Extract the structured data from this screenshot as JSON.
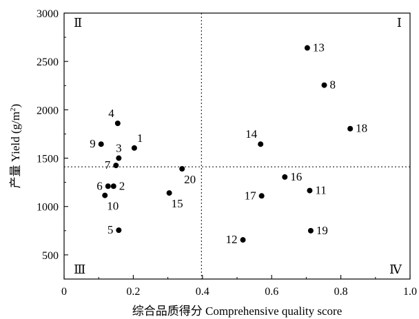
{
  "chart_data": {
    "type": "scatter",
    "xlabel": "综合品质得分 Comprehensive quality score",
    "ylabel_main": "产量 Yield (g/m",
    "ylabel_sup": "2",
    "ylabel_end": ")",
    "xlim": [
      0,
      1.0
    ],
    "ylim": [
      250,
      3000
    ],
    "x_ticks": [
      0,
      0.2,
      0.4,
      0.6,
      0.8,
      1.0
    ],
    "x_tick_labels": [
      "0",
      "0.2",
      "0.4",
      "0.6",
      "0.8",
      "1.0"
    ],
    "y_ticks": [
      500,
      1000,
      1500,
      2000,
      2500,
      3000
    ],
    "y_tick_labels": [
      "500",
      "1000",
      "1500",
      "2000",
      "2500",
      "3000"
    ],
    "ref_lines": {
      "x": 0.397,
      "y": 1410
    },
    "quadrants": {
      "top_left": "Ⅱ",
      "top_right": "Ⅰ",
      "bottom_left": "Ⅲ",
      "bottom_right": "Ⅳ"
    },
    "grid": false,
    "points": [
      {
        "label": "1",
        "x": 0.203,
        "y": 1605,
        "pos": "above-right"
      },
      {
        "label": "2",
        "x": 0.143,
        "y": 1210,
        "pos": "right"
      },
      {
        "label": "3",
        "x": 0.158,
        "y": 1500,
        "pos": "above"
      },
      {
        "label": "4",
        "x": 0.155,
        "y": 1860,
        "pos": "above-left"
      },
      {
        "label": "5",
        "x": 0.158,
        "y": 755,
        "pos": "left"
      },
      {
        "label": "6",
        "x": 0.127,
        "y": 1210,
        "pos": "left"
      },
      {
        "label": "7",
        "x": 0.15,
        "y": 1425,
        "pos": "left"
      },
      {
        "label": "8",
        "x": 0.752,
        "y": 2255,
        "pos": "right"
      },
      {
        "label": "9",
        "x": 0.107,
        "y": 1645,
        "pos": "left"
      },
      {
        "label": "10",
        "x": 0.118,
        "y": 1115,
        "pos": "below-right"
      },
      {
        "label": "11",
        "x": 0.71,
        "y": 1165,
        "pos": "right"
      },
      {
        "label": "12",
        "x": 0.517,
        "y": 655,
        "pos": "left"
      },
      {
        "label": "13",
        "x": 0.703,
        "y": 2640,
        "pos": "right"
      },
      {
        "label": "14",
        "x": 0.568,
        "y": 1645,
        "pos": "above-left"
      },
      {
        "label": "15",
        "x": 0.304,
        "y": 1140,
        "pos": "below-right"
      },
      {
        "label": "16",
        "x": 0.638,
        "y": 1305,
        "pos": "right"
      },
      {
        "label": "17",
        "x": 0.571,
        "y": 1110,
        "pos": "left"
      },
      {
        "label": "18",
        "x": 0.827,
        "y": 1805,
        "pos": "right"
      },
      {
        "label": "19",
        "x": 0.713,
        "y": 750,
        "pos": "right"
      },
      {
        "label": "20",
        "x": 0.341,
        "y": 1390,
        "pos": "below-right"
      }
    ]
  }
}
